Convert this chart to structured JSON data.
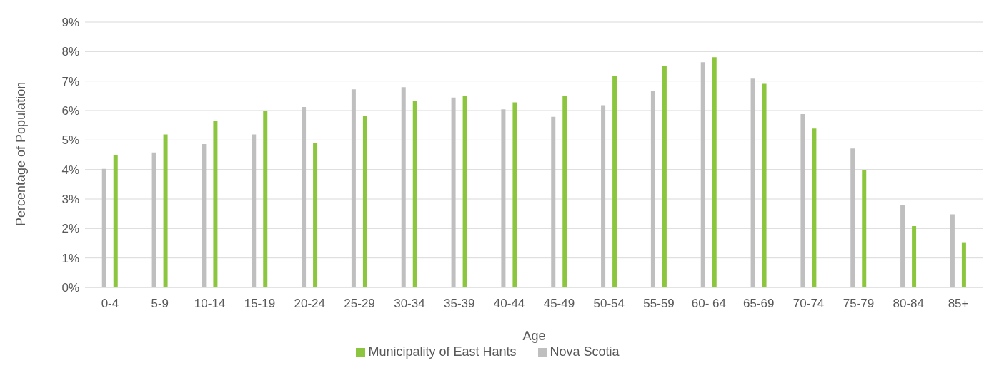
{
  "chart_data": {
    "type": "bar",
    "xlabel": "Age",
    "ylabel": "Percentage of Population",
    "categories": [
      "0-4",
      "5-9",
      "10-14",
      "15-19",
      "20-24",
      "25-29",
      "30-34",
      "35-39",
      "40-44",
      "45-49",
      "50-54",
      "55-59",
      "60- 64",
      "65-69",
      "70-74",
      "75-79",
      "80-84",
      "85+"
    ],
    "series": [
      {
        "name": "Nova Scotia",
        "color": "#bfbfbf",
        "values": [
          4.02,
          4.58,
          4.86,
          5.19,
          6.12,
          6.72,
          6.79,
          6.44,
          6.04,
          5.79,
          6.18,
          6.67,
          7.64,
          7.08,
          5.88,
          4.71,
          2.8,
          2.48
        ]
      },
      {
        "name": "Municipality of East Hants",
        "color": "#8cc63f",
        "values": [
          4.49,
          5.19,
          5.65,
          5.98,
          4.89,
          5.81,
          6.32,
          6.51,
          6.28,
          6.51,
          7.16,
          7.52,
          7.81,
          6.91,
          5.39,
          3.99,
          2.08,
          1.51
        ]
      }
    ],
    "ylim": [
      0,
      9
    ],
    "yticks": [
      {
        "value": 0,
        "label": "0%"
      },
      {
        "value": 1,
        "label": "1%"
      },
      {
        "value": 2,
        "label": "2%"
      },
      {
        "value": 3,
        "label": "3%"
      },
      {
        "value": 4,
        "label": "4%"
      },
      {
        "value": 5,
        "label": "5%"
      },
      {
        "value": 6,
        "label": "6%"
      },
      {
        "value": 7,
        "label": "7%"
      },
      {
        "value": 8,
        "label": "8%"
      },
      {
        "value": 9,
        "label": "9%"
      }
    ],
    "grid": "y",
    "legend": "bottom"
  }
}
